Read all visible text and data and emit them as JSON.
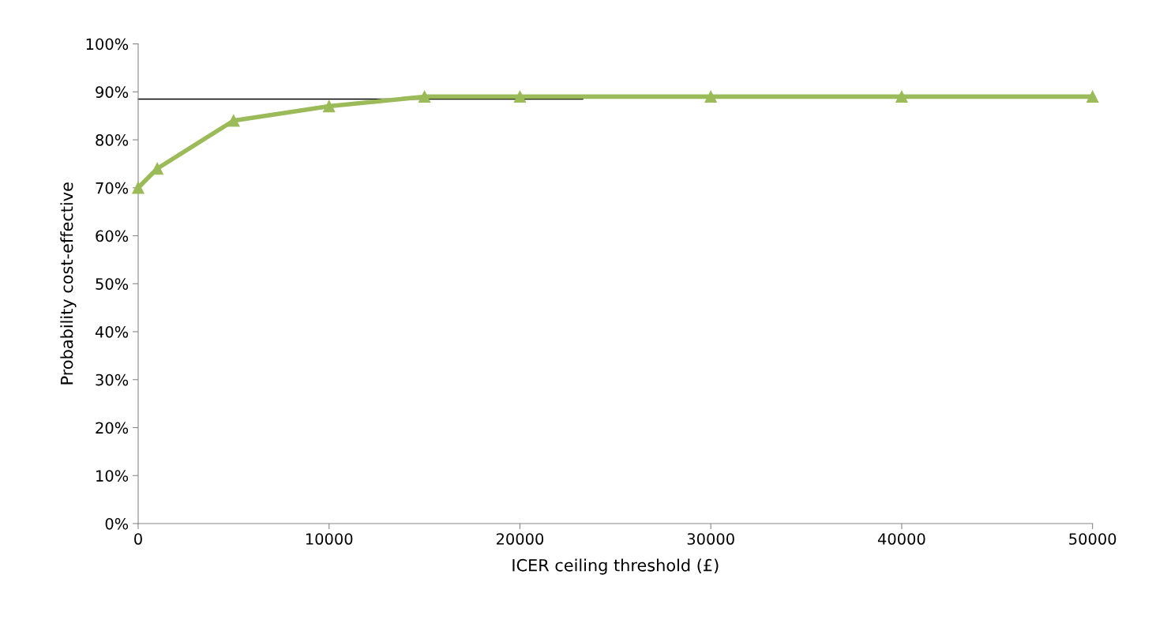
{
  "chart_data": {
    "type": "line",
    "xlabel": "ICER ceiling threshold (£)",
    "ylabel": "Probability cost-effective",
    "x": [
      0,
      1000,
      5000,
      10000,
      15000,
      20000,
      30000,
      40000,
      50000
    ],
    "series": [
      {
        "color": "#9bbb59",
        "values": [
          70,
          74,
          84,
          87,
          89,
          89,
          89,
          89,
          89
        ],
        "marker": "triangle"
      },
      {
        "color": "#000000",
        "x": [
          0,
          23300
        ],
        "values": [
          88.5,
          88.5
        ],
        "marker": "none"
      }
    ],
    "xlim": [
      0,
      50000
    ],
    "xticks": [
      0,
      10000,
      20000,
      30000,
      40000,
      50000
    ],
    "ylim": [
      0,
      100
    ],
    "yticks": [
      {
        "value": 0,
        "label": "0%"
      },
      {
        "value": 10,
        "label": "10%"
      },
      {
        "value": 20,
        "label": "20%"
      },
      {
        "value": 30,
        "label": "30%"
      },
      {
        "value": 40,
        "label": "40%"
      },
      {
        "value": 50,
        "label": "50%"
      },
      {
        "value": 60,
        "label": "60%"
      },
      {
        "value": 70,
        "label": "70%"
      },
      {
        "value": 80,
        "label": "80%"
      },
      {
        "value": 90,
        "label": "90%"
      },
      {
        "value": 100,
        "label": "100%"
      }
    ],
    "grid": false,
    "legend": false,
    "line_style": "solid"
  }
}
